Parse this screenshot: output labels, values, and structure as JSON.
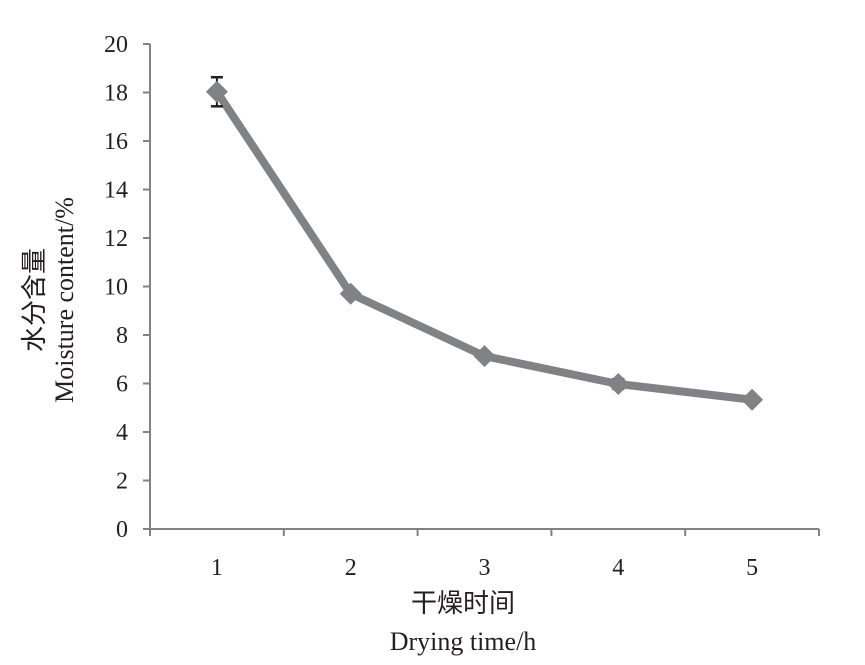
{
  "chart_data": {
    "type": "line",
    "title": "",
    "xlabel_cn": "干燥时间",
    "xlabel": "Drying time/h",
    "ylabel_cn": "水分含量",
    "ylabel": "Moisture content/%",
    "categories": [
      "1",
      "2",
      "3",
      "4",
      "5"
    ],
    "ylim": [
      0,
      20
    ],
    "yticks": [
      0,
      2,
      4,
      6,
      8,
      10,
      12,
      14,
      16,
      18,
      20
    ],
    "grid": false,
    "legend": "none",
    "series": [
      {
        "values": [
          18.03,
          9.7,
          7.13,
          5.98,
          5.33
        ],
        "errors": [
          0.6,
          0.1,
          0.1,
          0.2,
          0.1
        ],
        "color": "#808285",
        "marker": "diamond"
      }
    ],
    "axis_color": "#808285",
    "error_bar_color": "#231f20"
  }
}
